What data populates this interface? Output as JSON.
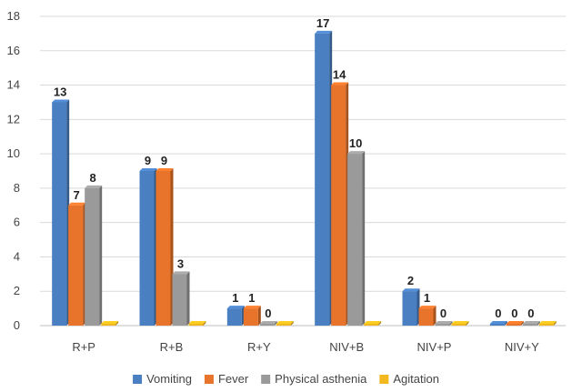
{
  "chart_data": {
    "type": "bar",
    "categories": [
      "R+P",
      "R+B",
      "R+Y",
      "NIV+B",
      "NIV+P",
      "NIV+Y"
    ],
    "series": [
      {
        "name": "Vomiting",
        "values": [
          13,
          9,
          1,
          17,
          2,
          0
        ],
        "color": "#4a7fc1"
      },
      {
        "name": "Fever",
        "values": [
          7,
          9,
          1,
          14,
          1,
          0
        ],
        "color": "#e8732a"
      },
      {
        "name": "Physical asthenia",
        "values": [
          8,
          3,
          0,
          10,
          0,
          0
        ],
        "color": "#9a9a9a"
      },
      {
        "name": "Agitation",
        "values": [
          0,
          0,
          0,
          0,
          0,
          0
        ],
        "color": "#f2b81f"
      }
    ],
    "labeled_series": [
      "Vomiting",
      "Fever",
      "Physical asthenia"
    ],
    "ylim": [
      0,
      18
    ],
    "yticks": [
      0,
      2,
      4,
      6,
      8,
      10,
      12,
      14,
      16,
      18
    ],
    "grid": true,
    "legend_position": "bottom",
    "title": "",
    "xlabel": "",
    "ylabel": ""
  }
}
